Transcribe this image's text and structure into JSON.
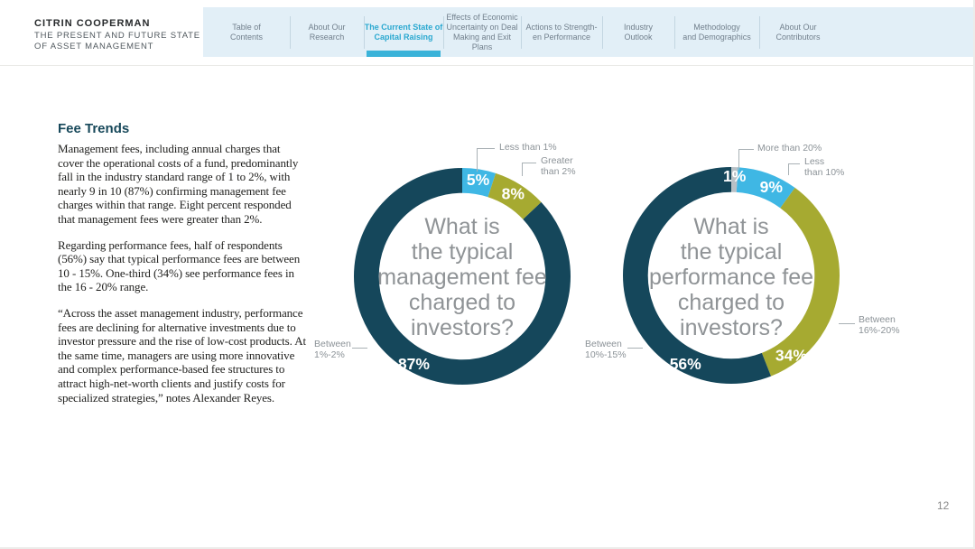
{
  "header": {
    "logo_title": "CITRIN COOPERMAN",
    "logo_subtitle": "THE PRESENT AND FUTURE STATE\nOF ASSET MANAGEMENT",
    "accent_color": "#3ab3d9",
    "tabs": [
      {
        "id": "table-of-contents",
        "label": "Table of\nContents",
        "active": false
      },
      {
        "id": "about-our-research",
        "label": "About Our\nResearch",
        "active": false
      },
      {
        "id": "current-state-of-capital-raising",
        "label": "The Current State of\nCapital Raising",
        "active": true
      },
      {
        "id": "effects-of-economic-uncertainty",
        "label": "Effects of Economic\nUncertainty on Deal\nMaking and Exit Plans",
        "active": false
      },
      {
        "id": "actions-to-strengthen-performance",
        "label": "Actions to Strength-\nen Performance",
        "active": false
      },
      {
        "id": "industry-outlook",
        "label": "Industry\nOutlook",
        "active": false
      },
      {
        "id": "methodology-and-demographics",
        "label": "Methodology\nand Demographics",
        "active": false
      },
      {
        "id": "about-our-contributors",
        "label": "About Our\nContributors",
        "active": false
      }
    ]
  },
  "main": {
    "heading": "Fee Trends",
    "paragraphs": [
      "Management fees, including annual charges that cover the operational costs of a fund, predominantly fall in the industry standard range of 1 to 2%, with nearly 9 in 10 (87%) confirming management fee charges within that range. Eight percent responded that management fees were greater than 2%.",
      "Regarding performance fees, half of respondents (56%) say that typical performance fees are between 10 - 15%. One-third (34%) see performance fees in the 16 - 20% range.",
      "“Across the asset management industry, performance fees are declining for alternative investments due to investor pressure and the rise of low-cost products. At the same time, managers are using more innovative and complex performance-based fee structures to attract high-net-worth clients and justify costs for specialized strategies,” notes Alexander Reyes."
    ]
  },
  "chart_data": [
    {
      "type": "pie",
      "variant": "donut",
      "question": "What is\nthe typical\nmanagement fee\ncharged to\ninvestors?",
      "legend_position": "callouts",
      "segments": [
        {
          "label": "Less than 1%",
          "value": 5,
          "pct_label": "5%",
          "color": "#3fb7e4",
          "label_pos": [
            149,
            14
          ]
        },
        {
          "label": "Greater\nthan 2%",
          "value": 8,
          "pct_label": "8%",
          "color": "#a6aa31",
          "label_pos": [
            191,
            31
          ]
        },
        {
          "label": "Between\n1%-2%",
          "value": 87,
          "pct_label": "87%",
          "color": "#15475b",
          "label_pos": [
            72,
            235
          ]
        }
      ]
    },
    {
      "type": "pie",
      "variant": "donut",
      "question": "What is\nthe typical\nperformance fee\ncharged to\ninvestors?",
      "legend_position": "callouts",
      "segments": [
        {
          "label": "More than 20%",
          "value": 1,
          "pct_label": "1%",
          "color": "#b9c1c6",
          "label_pos": [
            134,
            11
          ]
        },
        {
          "label": "Less\nthan 10%",
          "value": 9,
          "pct_label": "9%",
          "color": "#3fb7e4",
          "label_pos": [
            178,
            24
          ]
        },
        {
          "label": "Between\n16%-20%",
          "value": 34,
          "pct_label": "34%",
          "color": "#a6aa31",
          "label_pos": [
            202,
            226
          ]
        },
        {
          "label": "Between\n10%-15%",
          "value": 56,
          "pct_label": "56%",
          "color": "#15475b",
          "label_pos": [
            75,
            236
          ]
        }
      ]
    }
  ],
  "footer": {
    "page_number": "12"
  }
}
